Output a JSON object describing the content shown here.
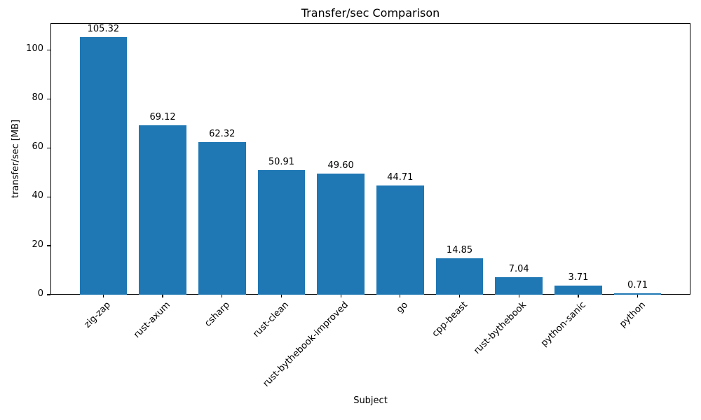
{
  "chart_data": {
    "type": "bar",
    "title": "Transfer/sec Comparison",
    "xlabel": "Subject",
    "ylabel": "transfer/sec [MB]",
    "categories": [
      "zig-zap",
      "rust-axum",
      "csharp",
      "rust-clean",
      "rust-bythebook-improved",
      "go",
      "cpp-beast",
      "rust-bythebook",
      "python-sanic",
      "python"
    ],
    "values": [
      105.32,
      69.12,
      62.32,
      50.91,
      49.6,
      44.71,
      14.85,
      7.04,
      3.71,
      0.71
    ],
    "value_label_decimals": 2,
    "yticks": [
      0,
      20,
      40,
      60,
      80,
      100
    ],
    "ylim": [
      0,
      111
    ],
    "bar_color": "#1f77b4",
    "axis_color": "#000000",
    "grid": false,
    "legend": "none",
    "x_tick_rotation_deg": 45
  }
}
